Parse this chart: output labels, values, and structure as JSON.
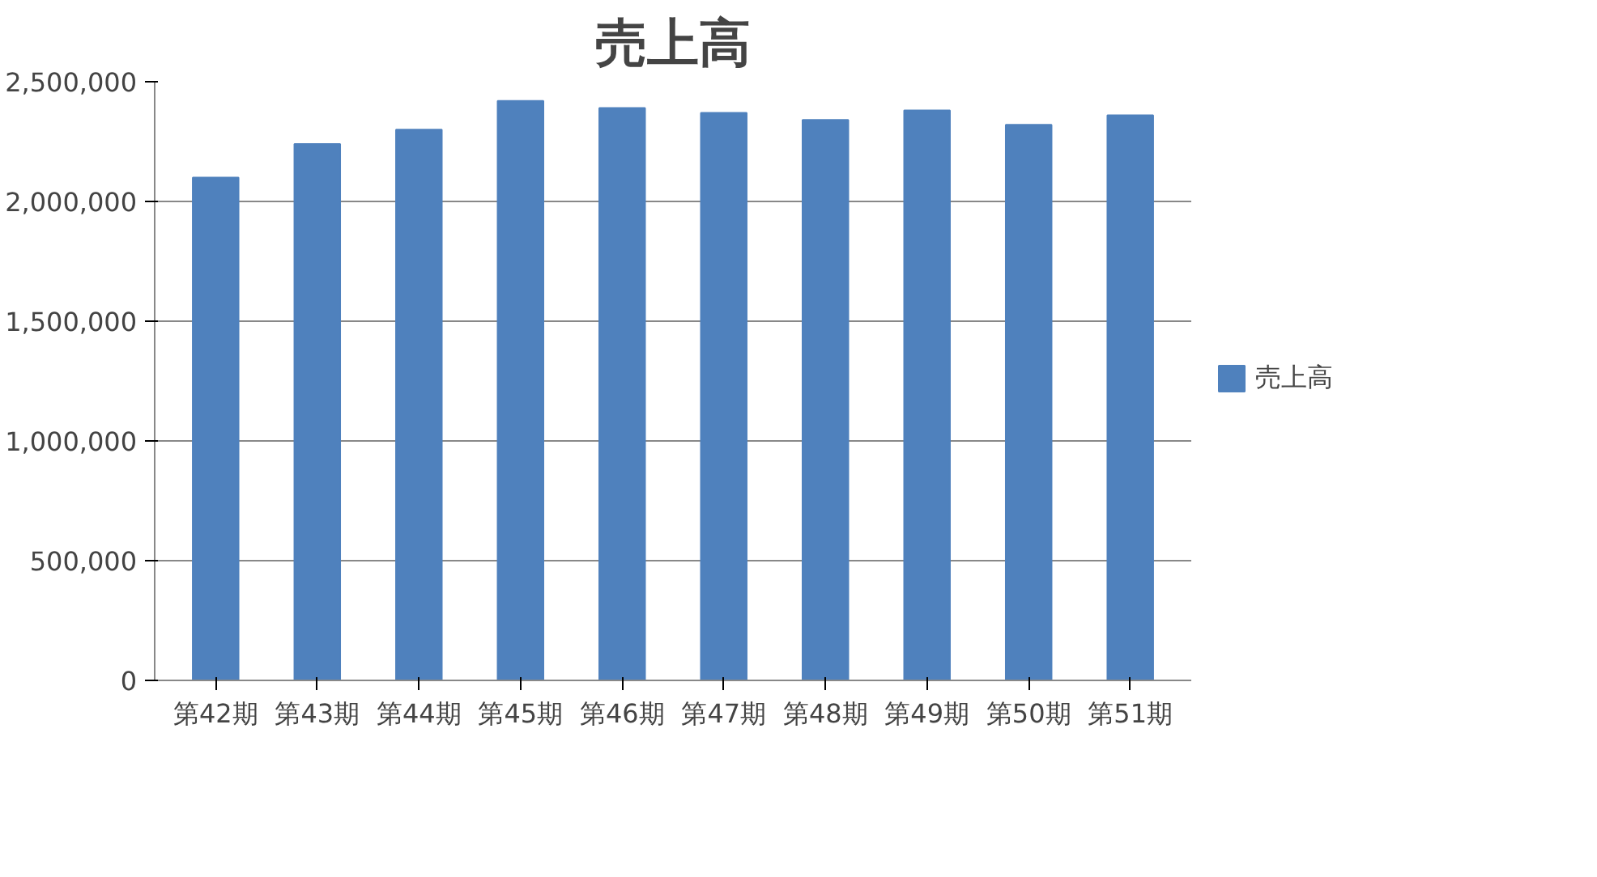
{
  "chart_data": {
    "type": "bar",
    "title": "売上高",
    "categories": [
      "第42期",
      "第43期",
      "第44期",
      "第45期",
      "第46期",
      "第47期",
      "第48期",
      "第49期",
      "第50期",
      "第51期"
    ],
    "series": [
      {
        "name": "売上高",
        "color": "#4f81bd",
        "values": [
          2100000,
          2240000,
          2300000,
          2420000,
          2390000,
          2370000,
          2340000,
          2380000,
          2320000,
          2360000
        ]
      }
    ],
    "ylim": [
      0,
      2500000
    ],
    "yticks": [
      {
        "value": 0,
        "label": "0"
      },
      {
        "value": 500000,
        "label": "500,000"
      },
      {
        "value": 1000000,
        "label": "1,000,000"
      },
      {
        "value": 1500000,
        "label": "1,500,000"
      },
      {
        "value": 2000000,
        "label": "2,000,000"
      },
      {
        "value": 2500000,
        "label": "2,500,000"
      }
    ],
    "grid": "y",
    "legend": "right"
  }
}
